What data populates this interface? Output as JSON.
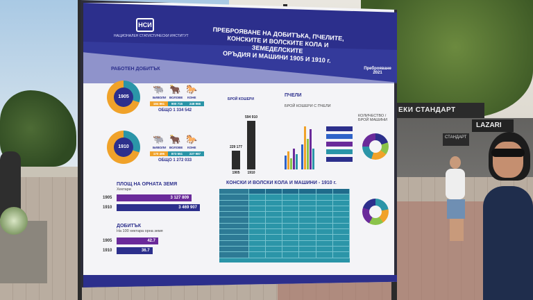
{
  "board": {
    "logo_text": "НАЦИОНАЛЕН СТАТИСТИЧЕСКИ ИНСТИТУТ",
    "title_lines": [
      "ПРЕБРОЯВАНЕ НА ДОБИТЪКА, ПЧЕЛИТЕ,",
      "КОНСКИТЕ И ВОЛСКИТЕ КОЛА И ЗЕМЕДЕЛСКИТЕ",
      "ОРЪДИЯ И МАШИНИ 1905 И 1910 г."
    ],
    "census_logo": "Преброяване 2021",
    "work_livestock": {
      "title": "РАБОТЕН ДОБИТЪК",
      "years": [
        {
          "year": "1905",
          "animals": [
            {
              "label": "БИВОЛИ",
              "value": "184 861"
            },
            {
              "label": "ВОЛОВЕ",
              "value": "900 715"
            },
            {
              "label": "КОНЕ",
              "value": "248 966"
            }
          ],
          "total": "ОБЩО 1 334 542"
        },
        {
          "year": "1910",
          "animals": [
            {
              "label": "БИВОЛИ",
              "value": "170 495"
            },
            {
              "label": "ВОЛОВЕ",
              "value": "873 551"
            },
            {
              "label": "КОНЕ",
              "value": "227 987"
            }
          ],
          "total": "ОБЩО 1 272 033"
        }
      ]
    },
    "arable_area": {
      "title": "ПЛОЩ НА ОРНАТА ЗЕМЯ",
      "unit": "Хектари",
      "rows": [
        {
          "year": "1905",
          "value": 3127809,
          "label": "3 127 809"
        },
        {
          "year": "1910",
          "value": 3469907,
          "label": "3 469 907"
        }
      ]
    },
    "yields": {
      "title": "ДОБИТЪК",
      "subtitle": "На 100 хектара орна земя",
      "rows": [
        {
          "year": "1905",
          "value": 42.7,
          "label": "42.7"
        },
        {
          "year": "1910",
          "value": 36.7,
          "label": "36.7"
        }
      ]
    },
    "hives": {
      "title": "БРОЙ КОШЕРИ",
      "bars": [
        {
          "year": "1905",
          "value": 229177,
          "label": "229 177"
        },
        {
          "year": "1910",
          "value": 594910,
          "label": "594 910"
        }
      ]
    },
    "bees": {
      "title": "ПЧЕЛИ",
      "subtitle": "БРОЙ КОШЕРИ С ПЧЕЛИ"
    },
    "carts": {
      "title": "КОНСКИ И ВОЛСКИ КОЛА И МАШИНИ - 1910 г."
    },
    "wheels_title": "КОЛИЧЕСТВО / БРОЙ МАШИНИ",
    "colors": {
      "navy": "#2c2f8c",
      "purple": "#6a2a9a",
      "orange": "#f0a22a",
      "teal": "#2b95a8",
      "blue": "#2f63c8",
      "green": "#8bc34a"
    }
  },
  "street": {
    "shop_sign": "ЕКИ СТАНДАРТ",
    "shop_sign_2": "LAZARI",
    "shop_sign_3": "СТАНДАРТ"
  }
}
